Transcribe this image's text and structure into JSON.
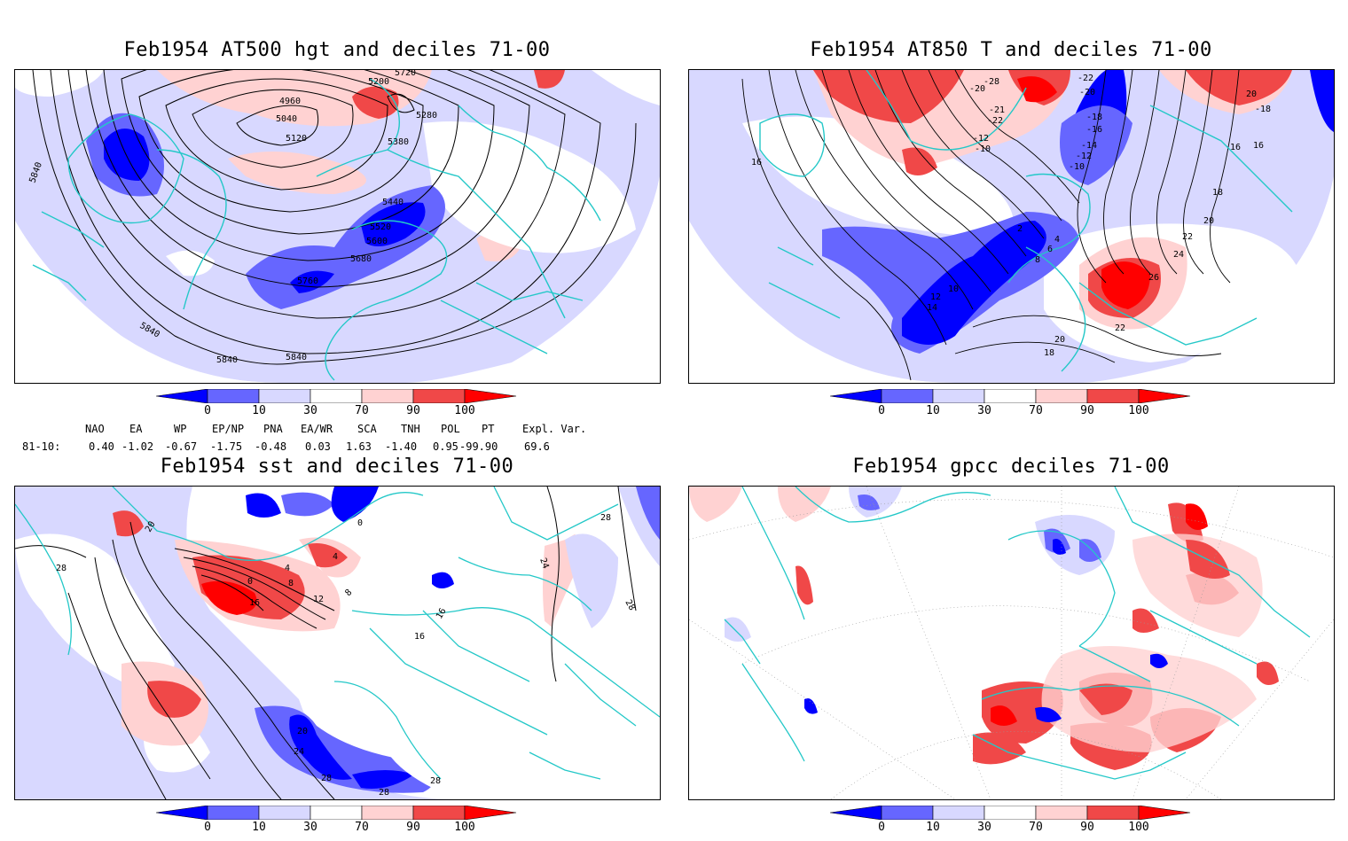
{
  "panels": [
    {
      "title": "Feb1954 AT500 hgt and deciles 71-00",
      "contour_labels": [
        "5840",
        "5720",
        "4960",
        "5200",
        "5280",
        "5040",
        "5380",
        "5120",
        "5440",
        "5520",
        "5600",
        "5680",
        "5760",
        "5840",
        "5840",
        "5840"
      ]
    },
    {
      "title": "Feb1954 AT850 T and deciles 71-00",
      "contour_labels": [
        "-28",
        "-20",
        "-22",
        "-20",
        "-18",
        "-16",
        "-14",
        "-12",
        "-10",
        "-21",
        "-22",
        "-12",
        "-10",
        "2",
        "4",
        "6",
        "8",
        "10",
        "12",
        "14",
        "16",
        "16",
        "18",
        "20",
        "22",
        "24",
        "26",
        "22",
        "20",
        "18",
        "-18",
        "20",
        "16"
      ]
    },
    {
      "title": "Feb1954 sst and deciles 71-00",
      "contour_labels": [
        "20",
        "28",
        "0",
        "4",
        "8",
        "12",
        "16",
        "0",
        "4",
        "8",
        "16",
        "16",
        "24",
        "28",
        "28",
        "20",
        "24",
        "28",
        "28",
        "28"
      ]
    },
    {
      "title": "Feb1954 gpcc deciles 71-00",
      "contour_labels": []
    }
  ],
  "colorbar": {
    "ticks": [
      "0",
      "10",
      "30",
      "70",
      "90",
      "100"
    ],
    "colors": [
      "#0000ff",
      "#6666ff",
      "#d8d8ff",
      "#ffffff",
      "#ffd2d2",
      "#f04848",
      "#ff0000"
    ]
  },
  "indices": {
    "headers": [
      "NAO",
      "EA",
      "WP",
      "EP/NP",
      "PNA",
      "EA/WR",
      "SCA",
      "TNH",
      "POL",
      "PT",
      "Expl. Var."
    ],
    "row_label": "81-10:",
    "values": [
      "0.40",
      "-1.02",
      "-0.67",
      "-1.75",
      "-0.48",
      "0.03",
      "1.63",
      "-1.40",
      "0.95",
      "-99.90",
      "69.6"
    ]
  },
  "colors": {
    "coast": "#24c8c8",
    "deep_blue": "#0000ff",
    "mid_blue": "#6666ff",
    "light_blue": "#d8d8ff",
    "light_red": "#ffd2d2",
    "mid_red": "#f04848",
    "deep_red": "#ff0000"
  }
}
